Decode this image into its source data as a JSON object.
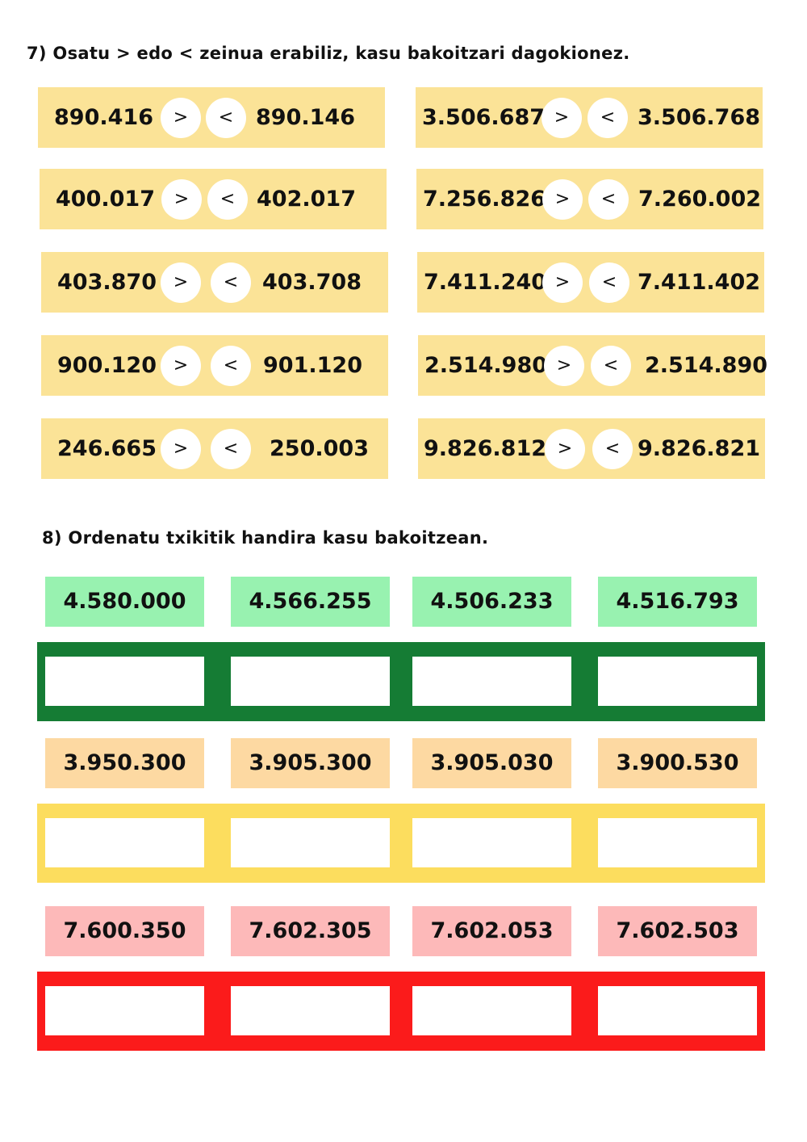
{
  "exercise7": {
    "instruction": "7) Osatu > edo < zeinua erabiliz, kasu bakoitzari dagokionez.",
    "symbols": {
      "greater": ">",
      "less": "<"
    },
    "row_color": "#fbe397",
    "rows": [
      {
        "left": "890.416",
        "right": "890.146"
      },
      {
        "left": "3.506.687",
        "right": "3.506.768"
      },
      {
        "left": "400.017",
        "right": "402.017"
      },
      {
        "left": "7.256.826",
        "right": "7.260.002"
      },
      {
        "left": "403.870",
        "right": "403.708"
      },
      {
        "left": "7.411.240",
        "right": "7.411.402"
      },
      {
        "left": "900.120",
        "right": "901.120"
      },
      {
        "left": "2.514.980",
        "right": "2.514.890"
      },
      {
        "left": "246.665",
        "right": "250.003"
      },
      {
        "left": "9.826.812",
        "right": "9.826.821"
      }
    ]
  },
  "exercise8": {
    "instruction": "8) Ordenatu txikitik handira kasu bakoitzean.",
    "groups": [
      {
        "card_color": "#98f2b0",
        "band_color": "#157c34",
        "cards": [
          "4.580.000",
          "4.566.255",
          "4.506.233",
          "4.516.793"
        ]
      },
      {
        "card_color": "#fdd9a2",
        "band_color": "#fcdd5e",
        "cards": [
          "3.950.300",
          "3.905.300",
          "3.905.030",
          "3.900.530"
        ]
      },
      {
        "card_color": "#fdb9b9",
        "band_color": "#fb1b1b",
        "cards": [
          "7.600.350",
          "7.602.305",
          "7.602.053",
          "7.602.503"
        ]
      }
    ]
  }
}
